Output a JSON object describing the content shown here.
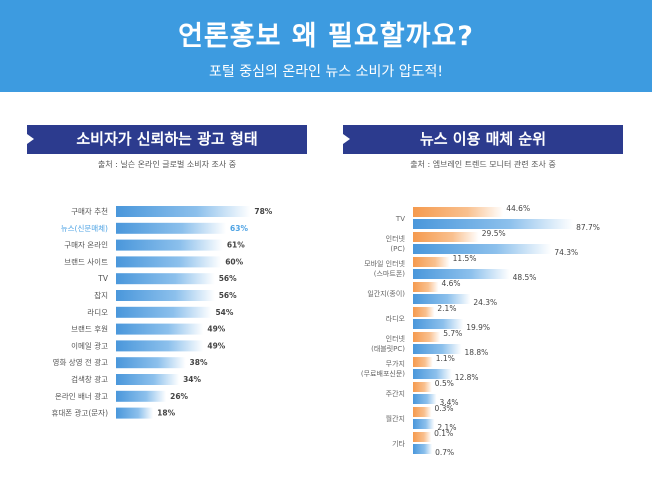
{
  "header": {
    "title": "언론홍보 왜 필요할까요?",
    "subtitle": "포털 중심의 온라인 뉴스 소비가 압도적!"
  },
  "colors": {
    "header": "#3d9be0",
    "section": "#2c3b8e",
    "blue": "#4a97db",
    "orange": "#f59a4e",
    "highlight": "#4ea3e4"
  },
  "chart_data": [
    {
      "type": "bar",
      "title": "소비자가 신뢰하는 광고 형태",
      "source": "출처 : 닐슨 온라인 글로벌 소비자 조사 중",
      "categories": [
        "구매자 추천",
        "뉴스(신문매체)",
        "구매자 온라인",
        "브랜드 사이트",
        "TV",
        "잡지",
        "라디오",
        "브랜드 후원",
        "이메일 광고",
        "영화 상영 전 광고",
        "검색창 광고",
        "온라인 배너 광고",
        "휴대폰 광고(문자)"
      ],
      "values": [
        78,
        63,
        61,
        60,
        56,
        56,
        54,
        49,
        49,
        38,
        34,
        26,
        18
      ],
      "labels": [
        "78%",
        "63%",
        "61%",
        "60%",
        "56%",
        "56%",
        "54%",
        "49%",
        "49%",
        "38%",
        "34%",
        "26%",
        "18%"
      ],
      "highlight_index": 1
    },
    {
      "type": "bar",
      "title": "뉴스 이용 매체 순위",
      "source": "출처 : 엠브레인 트렌드 모니터 관련 조사 중",
      "categories": [
        [
          "TV"
        ],
        [
          "인터넷",
          "(PC)"
        ],
        [
          "모바일 인터넷",
          "(스마트폰)"
        ],
        [
          "일간지(종이)"
        ],
        [
          "라디오"
        ],
        [
          "인터넷",
          "(태블릿PC)"
        ],
        [
          "무가지",
          "(무료배포신문)"
        ],
        [
          "주간지"
        ],
        [
          "월간지"
        ],
        [
          "기타"
        ]
      ],
      "series": [
        {
          "name": "orange",
          "values": [
            44.6,
            29.5,
            11.5,
            4.6,
            2.1,
            5.7,
            1.1,
            0.5,
            0.3,
            0.1
          ],
          "labels": [
            "44.6%",
            "29.5%",
            "11.5%",
            "4.6%",
            "2.1%",
            "5.7%",
            "1.1%",
            "0.5%",
            "0.3%",
            "0.1%"
          ]
        },
        {
          "name": "blue",
          "values": [
            87.7,
            74.3,
            48.5,
            24.3,
            19.9,
            18.8,
            12.8,
            3.4,
            2.1,
            0.7
          ],
          "labels": [
            "87.7%",
            "74.3%",
            "48.5%",
            "24.3%",
            "19.9%",
            "18.8%",
            "12.8%",
            "3.4%",
            "2.1%",
            "0.7%"
          ]
        }
      ]
    }
  ]
}
